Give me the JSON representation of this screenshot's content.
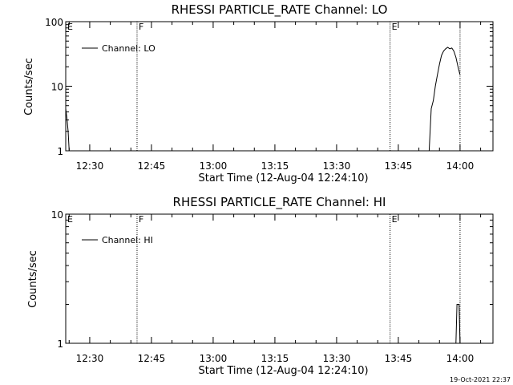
{
  "footer_timestamp": "19-Oct-2021 22:37",
  "chart_data": [
    {
      "type": "line",
      "title": "RHESSI PARTICLE_RATE Channel: LO",
      "xlabel": "Start Time (12-Aug-04 12:24:10)",
      "ylabel": "Counts/sec",
      "yscale": "log",
      "ylim": [
        1,
        100
      ],
      "xlim": [
        "12:24:10",
        "14:08:00"
      ],
      "x_ticks": [
        "12:30",
        "12:45",
        "13:00",
        "13:15",
        "13:30",
        "13:45",
        "14:00"
      ],
      "y_ticks": [
        "1",
        "10",
        "100"
      ],
      "grid": false,
      "legend": {
        "placement": "top-left",
        "label": "Channel: LO"
      },
      "markers": [
        {
          "label": "E",
          "time": "12:24:10",
          "style": "dotted"
        },
        {
          "label": "F",
          "time": "12:41:30",
          "style": "dotted"
        },
        {
          "label": "E",
          "time": "13:43:00",
          "style": "dotted"
        },
        {
          "label": "",
          "time": "14:00:00",
          "style": "dotted"
        }
      ],
      "series": [
        {
          "name": "Channel: LO",
          "points": [
            [
              "12:24:10",
              4.5
            ],
            [
              "12:24:30",
              3.0
            ],
            [
              "12:24:45",
              2.0
            ],
            [
              "12:25:00",
              1.0
            ],
            [
              "13:52:30",
              1.0
            ],
            [
              "13:53:00",
              4.5
            ],
            [
              "13:53:30",
              6.0
            ],
            [
              "13:54:00",
              10.0
            ],
            [
              "13:54:30",
              15.0
            ],
            [
              "13:55:00",
              22.0
            ],
            [
              "13:55:30",
              30.0
            ],
            [
              "13:56:00",
              35.0
            ],
            [
              "13:56:30",
              38.0
            ],
            [
              "13:57:00",
              40.0
            ],
            [
              "13:57:30",
              38.0
            ],
            [
              "13:58:00",
              39.0
            ],
            [
              "13:58:30",
              35.0
            ],
            [
              "13:59:00",
              28.0
            ],
            [
              "13:59:30",
              20.0
            ],
            [
              "14:00:00",
              15.0
            ]
          ]
        }
      ]
    },
    {
      "type": "line",
      "title": "RHESSI PARTICLE_RATE Channel: HI",
      "xlabel": "Start Time (12-Aug-04 12:24:10)",
      "ylabel": "Counts/sec",
      "yscale": "log",
      "ylim": [
        1,
        10
      ],
      "xlim": [
        "12:24:10",
        "14:08:00"
      ],
      "x_ticks": [
        "12:30",
        "12:45",
        "13:00",
        "13:15",
        "13:30",
        "13:45",
        "14:00"
      ],
      "y_ticks": [
        "1",
        "10"
      ],
      "grid": false,
      "legend": {
        "placement": "top-left",
        "label": "Channel: HI"
      },
      "markers": [
        {
          "label": "E",
          "time": "12:24:10",
          "style": "dotted"
        },
        {
          "label": "F",
          "time": "12:41:30",
          "style": "dotted"
        },
        {
          "label": "E",
          "time": "13:43:00",
          "style": "dotted"
        },
        {
          "label": "",
          "time": "14:00:00",
          "style": "dotted"
        }
      ],
      "series": [
        {
          "name": "Channel: HI",
          "points": [
            [
              "13:59:00",
              1.0
            ],
            [
              "13:59:15",
              2.0
            ],
            [
              "13:59:45",
              2.0
            ],
            [
              "14:00:00",
              1.0
            ]
          ]
        }
      ]
    }
  ]
}
